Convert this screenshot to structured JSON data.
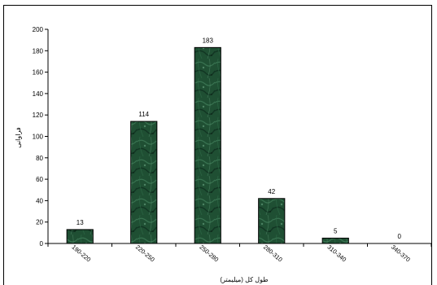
{
  "chart_data": {
    "type": "bar",
    "categories": [
      "190-220",
      "220-250",
      "250-280",
      "280-310",
      "310-340",
      "340-370"
    ],
    "values": [
      13,
      114,
      183,
      42,
      5,
      0
    ],
    "data_labels": [
      "13",
      "114",
      "183",
      "42",
      "5",
      "0"
    ],
    "xlabel": "طول کل (میلیمتر)",
    "ylabel": "فراوانی",
    "ylim": [
      0,
      200
    ],
    "yticks": [
      0,
      20,
      40,
      60,
      80,
      100,
      120,
      140,
      160,
      180,
      200
    ],
    "grid": false,
    "legend": "none",
    "bar_color": "#1f4f33",
    "bar_texture": "green marble"
  }
}
